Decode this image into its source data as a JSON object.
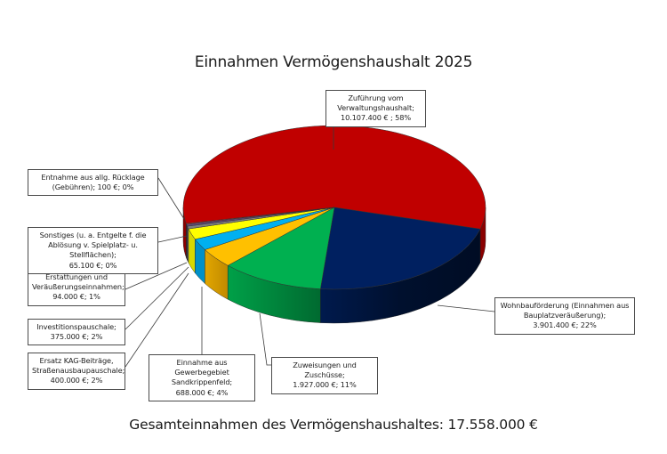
{
  "title": "Einnahmen Vermögenshaushalt 2025",
  "footer": "Gesamteinnahmen des Vermögenshaushaltes: 17.558.000 €",
  "labels": {
    "zufuehrung": {
      "l1": "Zuführung vom",
      "l2": "Verwaltungshaushalt;",
      "l3": "10.107.400 € ; 58%"
    },
    "wohnbau": {
      "l1": "Wohnbauförderung (Einnahmen aus",
      "l2": "Bauplatzveräußerung);",
      "l3": "3.901.400 €; 22%"
    },
    "zuweisungen": {
      "l1": "Zuweisungen und Zuschüsse;",
      "l2": "1.927.000 €; 11%"
    },
    "gewerbe": {
      "l1": "Einnahme aus Gewerbegebiet",
      "l2": "Sandkrippenfeld;",
      "l3": "688.000 €; 4%"
    },
    "ersatz": {
      "l1": "Ersatz KAG-Beiträge,",
      "l2": "Straßenausbaupauschale;",
      "l3": "400.000 €; 2%"
    },
    "invest": {
      "l1": "Investitionspauschale;",
      "l2": "375.000 €; 2%"
    },
    "erstattungen": {
      "l1": "Erstattungen und",
      "l2": "Veräußerungseinnahmen;",
      "l3": "94.000 €; 1%"
    },
    "sonstiges": {
      "l1": "Sonstiges (u. a. Entgelte f. die",
      "l2": "Ablösung v. Spielplatz- u. Stellflächen);",
      "l3": "65.100 €; 0%"
    },
    "entnahme": {
      "l1": "Entnahme aus allg. Rücklage",
      "l2": "(Gebühren); 100 €; 0%"
    }
  },
  "chart_data": {
    "type": "pie",
    "title": "Einnahmen Vermögenshaushalt 2025",
    "subtitle": "Gesamteinnahmen des Vermögenshaushaltes: 17.558.000 €",
    "style": "3d-pie",
    "categories": [
      "Zuführung vom Verwaltungshaushalt",
      "Wohnbauförderung (Einnahmen aus Bauplatzveräußerung)",
      "Zuweisungen und Zuschüsse",
      "Einnahme aus Gewerbegebiet Sandkrippenfeld",
      "Ersatz KAG-Beiträge, Straßenausbaupauschale",
      "Investitionspauschale",
      "Erstattungen und Veräußerungseinnahmen",
      "Sonstiges (u. a. Entgelte f. die Ablösung v. Spielplatz- u. Stellflächen)",
      "Entnahme aus allg. Rücklage (Gebühren)"
    ],
    "values": [
      10107400,
      3901400,
      1927000,
      688000,
      400000,
      375000,
      94000,
      65100,
      100
    ],
    "percentages": [
      58,
      22,
      11,
      4,
      2,
      2,
      1,
      0,
      0
    ],
    "unit": "€",
    "total": 17558000,
    "colors": [
      "#c00000",
      "#002060",
      "#00b050",
      "#ffc000",
      "#00b0f0",
      "#ffff00",
      "#7f7f7f",
      "#604a7b",
      "#c0504d"
    ],
    "legend": "none (data callouts)"
  }
}
